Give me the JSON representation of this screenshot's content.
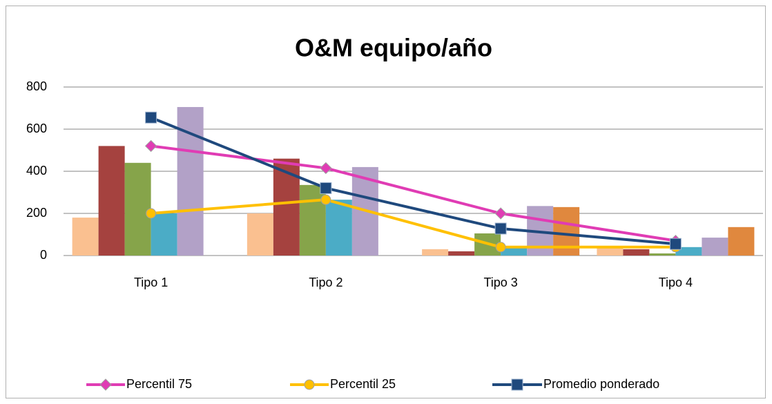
{
  "chart_data": {
    "type": "bar",
    "title": "O&M  equipo/año",
    "categories": [
      "Tipo 1",
      "Tipo 2",
      "Tipo 3",
      "Tipo 4"
    ],
    "ylim": [
      0,
      800
    ],
    "yticks": [
      0,
      200,
      400,
      600,
      800
    ],
    "grid": true,
    "legend": "bottom",
    "series": [
      {
        "type": "bar",
        "color": "#fac090",
        "values": [
          180,
          200,
          30,
          40
        ]
      },
      {
        "type": "bar",
        "color": "#a5423f",
        "values": [
          520,
          460,
          20,
          30
        ]
      },
      {
        "type": "bar",
        "color": "#86a44a",
        "values": [
          440,
          335,
          105,
          10
        ]
      },
      {
        "type": "bar",
        "color": "#4bacc6",
        "values": [
          200,
          265,
          40,
          40
        ]
      },
      {
        "type": "bar",
        "color": "#b2a1c7",
        "values": [
          705,
          420,
          235,
          85
        ]
      },
      {
        "type": "bar",
        "color": "#e0883e",
        "values": [
          null,
          null,
          230,
          135
        ]
      },
      {
        "type": "line",
        "name": "Percentil 75",
        "color": "#e03cb4",
        "marker": "diamond",
        "values": [
          520,
          415,
          200,
          70
        ]
      },
      {
        "type": "line",
        "name": "Percentil 25",
        "color": "#ffc000",
        "marker": "circle",
        "values": [
          200,
          265,
          40,
          40
        ]
      },
      {
        "type": "line",
        "name": "Promedio ponderado",
        "color": "#1f497d",
        "marker": "square",
        "values": [
          655,
          320,
          128,
          55
        ]
      }
    ]
  }
}
